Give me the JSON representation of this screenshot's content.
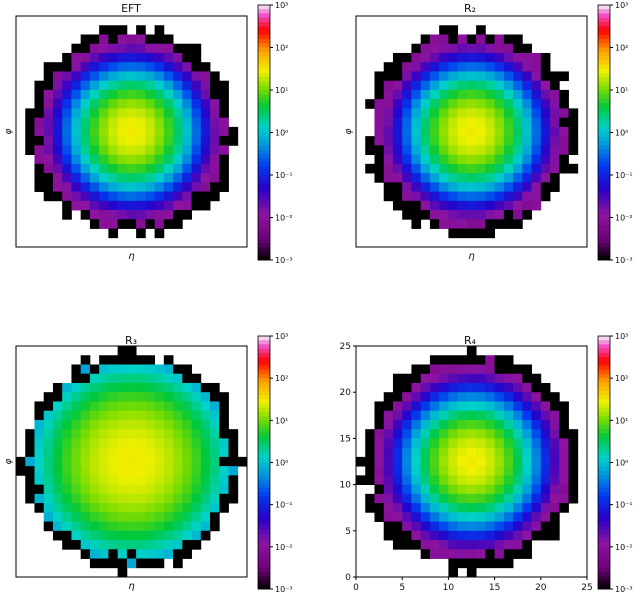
{
  "figure": {
    "colorbar_ticks": [
      "10⁻³",
      "10⁻²",
      "10⁻¹",
      "10⁰",
      "10¹",
      "10²",
      "10³"
    ],
    "colorbar_log_range": [
      -3,
      3
    ]
  },
  "chart_data": [
    {
      "type": "heatmap",
      "title": "EFT",
      "xlabel": "η",
      "ylabel": "φ",
      "grid_size": 25,
      "peak": 30,
      "sigma": 2.3,
      "ring_radius": 11.3,
      "min_value": 0.003,
      "colorbar_label": "",
      "show_ticks": false
    },
    {
      "type": "heatmap",
      "title": "R₂",
      "xlabel": "η",
      "ylabel": "φ",
      "grid_size": 25,
      "peak": 30,
      "sigma": 2.3,
      "ring_radius": 11.4,
      "min_value": 0.003,
      "colorbar_label": "",
      "show_ticks": false
    },
    {
      "type": "heatmap",
      "title": "R₃",
      "xlabel": "η",
      "ylabel": "φ",
      "grid_size": 25,
      "peak": 30,
      "sigma": 4.0,
      "ring_radius": 11.8,
      "min_value": 0.003,
      "colorbar_label": "",
      "show_ticks": false
    },
    {
      "type": "heatmap",
      "title": "R₄",
      "xlabel": "",
      "ylabel": "",
      "grid_size": 25,
      "peak": 30,
      "sigma": 2.4,
      "ring_radius": 11.8,
      "min_value": 0.003,
      "colorbar_label": "",
      "show_ticks": true,
      "xticks": [
        0,
        5,
        10,
        15,
        20,
        25
      ],
      "yticks": [
        0,
        5,
        10,
        15,
        20,
        25
      ]
    }
  ]
}
